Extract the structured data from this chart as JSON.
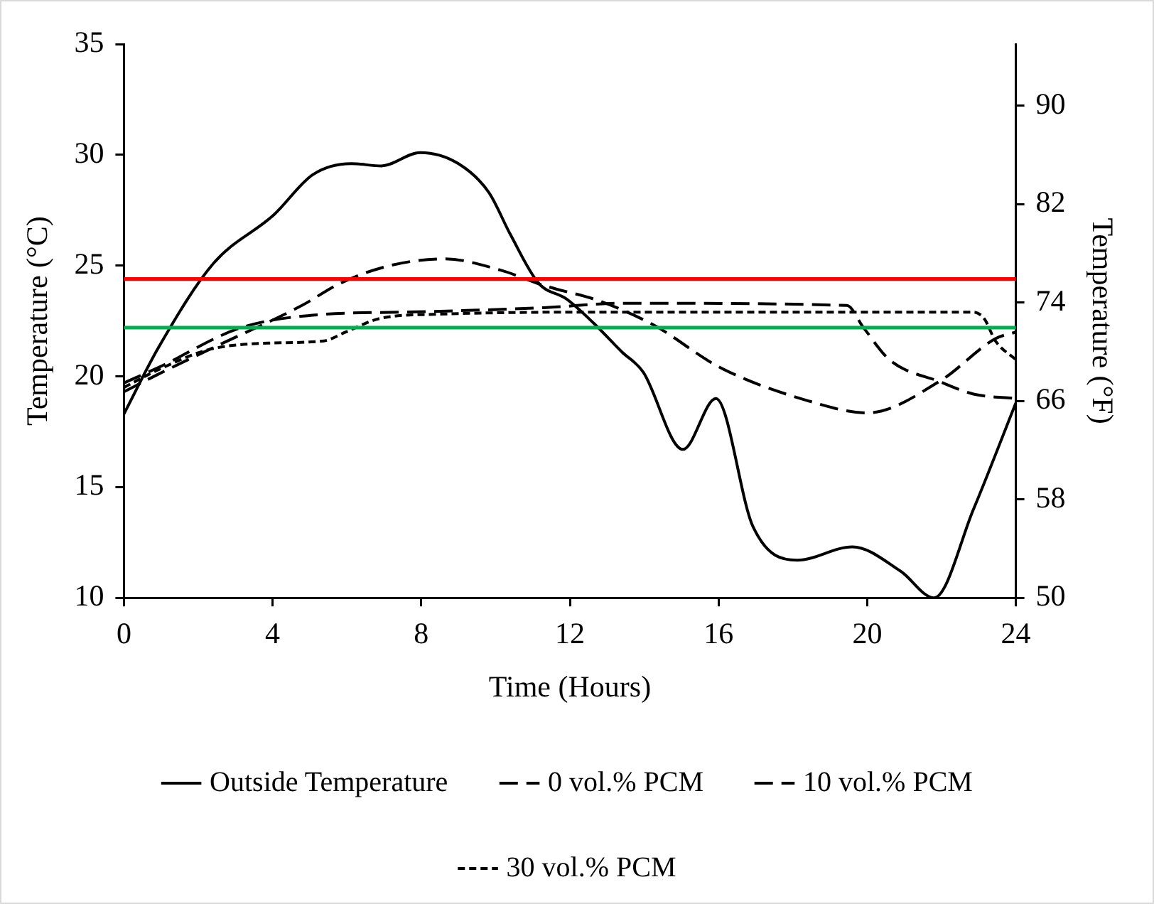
{
  "chart_data": {
    "type": "line",
    "xlabel": "Time (Hours)",
    "ylabel": "Temperature (°C)",
    "y2label": "Temperature (°F)",
    "xlim": [
      0,
      24
    ],
    "xticks": [
      0,
      4,
      8,
      12,
      16,
      20,
      24
    ],
    "ylim": [
      10,
      35
    ],
    "yticks": [
      10,
      15,
      20,
      25,
      30,
      35
    ],
    "y2lim": [
      50,
      95
    ],
    "y2ticks": [
      50,
      58,
      66,
      74,
      82,
      90
    ],
    "grid": false,
    "legend": "bottom",
    "marker": "none",
    "series": [
      {
        "name": "Outside Temperature",
        "color": "#000000",
        "line_style": "solid",
        "x": [
          0,
          0.93,
          2.41,
          4.04,
          5.08,
          6.12,
          6.93,
          7.97,
          9.0,
          9.82,
          10.4,
          11.16,
          11.9,
          12.64,
          13.4,
          13.97,
          15.04,
          15.93,
          16.93,
          18.12,
          19.6,
          20.9,
          21.8,
          22.86,
          24
        ],
        "values": [
          18.3,
          21.3,
          25.1,
          27.3,
          29.1,
          29.6,
          29.5,
          30.1,
          29.6,
          28.3,
          26.4,
          24.2,
          23.5,
          22.4,
          21.1,
          20.2,
          16.7,
          19.0,
          13.2,
          11.7,
          12.3,
          11.2,
          10.0,
          14.0,
          18.8
        ]
      },
      {
        "name": "0 vol.% PCM",
        "color": "#000000",
        "line_style": "dashed",
        "x": [
          0,
          0.93,
          2.41,
          4.79,
          5.82,
          7.16,
          8.64,
          10.12,
          11.3,
          12.8,
          14.27,
          16.04,
          18.4,
          20.0,
          21.97,
          23.45,
          24
        ],
        "values": [
          19.3,
          20.1,
          21.3,
          23.2,
          24.2,
          25.0,
          25.3,
          24.8,
          24.1,
          23.4,
          22.3,
          20.4,
          18.9,
          18.35,
          19.8,
          21.7,
          22.0
        ]
      },
      {
        "name": "10 vol.% PCM",
        "color": "#000000",
        "line_style": "dashed",
        "x": [
          0,
          0.93,
          3.16,
          5.4,
          7.6,
          11.3,
          13.4,
          19.45,
          19.9,
          20.6,
          21.97,
          22.86,
          24
        ],
        "values": [
          19.7,
          20.4,
          22.2,
          22.8,
          22.9,
          23.1,
          23.3,
          23.2,
          22.2,
          20.75,
          19.75,
          19.2,
          19.0
        ]
      },
      {
        "name": "30 vol.% PCM",
        "color": "#000000",
        "line_style": "dotted",
        "x": [
          0,
          0.93,
          2.27,
          3.9,
          5.38,
          5.97,
          6.86,
          8.34,
          13.4,
          22.86,
          23.15,
          23.45,
          24
        ],
        "values": [
          19.5,
          20.3,
          21.2,
          21.5,
          21.6,
          22.0,
          22.6,
          22.8,
          22.9,
          22.9,
          22.6,
          21.6,
          20.75
        ]
      }
    ],
    "ref_lines": [
      {
        "axis": "y",
        "value": 24.4,
        "color": "#ff0000"
      },
      {
        "axis": "y",
        "value": 22.2,
        "color": "#00b050"
      }
    ]
  }
}
